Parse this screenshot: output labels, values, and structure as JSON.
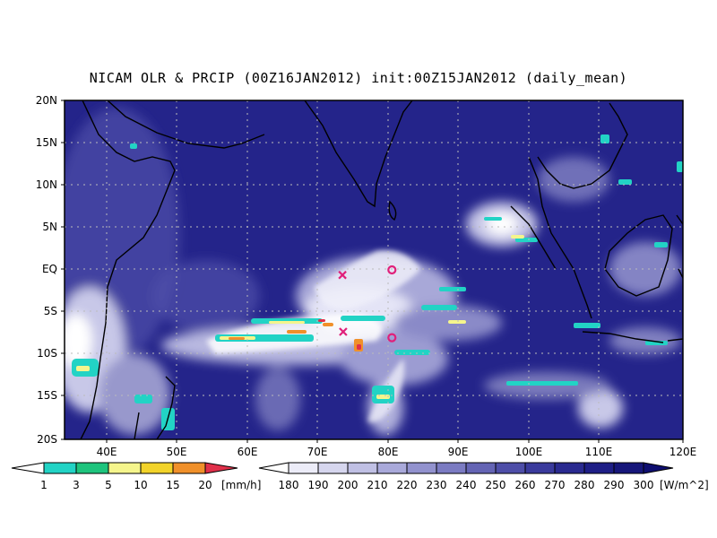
{
  "title": "NICAM OLR & PRCIP (00Z16JAN2012) init:00Z15JAN2012 (daily_mean)",
  "axes": {
    "lat_labels": [
      "20N",
      "15N",
      "10N",
      "5N",
      "EQ",
      "5S",
      "10S",
      "15S",
      "20S"
    ],
    "lon_labels": [
      "40E",
      "50E",
      "60E",
      "70E",
      "80E",
      "90E",
      "100E",
      "110E",
      "120E"
    ]
  },
  "precip_colorbar": {
    "unit": "[mm/h]",
    "ticks": [
      "1",
      "3",
      "5",
      "10",
      "15",
      "20"
    ],
    "colors": [
      "#ffffff",
      "#22d3c5",
      "#1ec47d",
      "#f5f58c",
      "#f2d32a",
      "#f0902a",
      "#e0304a"
    ]
  },
  "olr_colorbar": {
    "unit": "[W/m^2]",
    "ticks": [
      "180",
      "190",
      "200",
      "210",
      "220",
      "230",
      "240",
      "250",
      "260",
      "270",
      "280",
      "290",
      "300"
    ],
    "colors": [
      "#ffffff",
      "#ececf8",
      "#d6d6ee",
      "#c0c0e4",
      "#a9a9da",
      "#9292ce",
      "#7b7bc2",
      "#6464b4",
      "#4e4ea8",
      "#3a3a9c",
      "#2a2a90",
      "#1e1e86",
      "#16167a",
      "#0e0e70"
    ]
  },
  "markers": [
    {
      "type": "x",
      "lon": 73.2,
      "lat": -0.6,
      "color": "#e0207a"
    },
    {
      "type": "x",
      "lon": 73.3,
      "lat": -7.3,
      "color": "#e0207a"
    },
    {
      "type": "o",
      "lon": 80,
      "lat": 0,
      "color": "#e0207a"
    },
    {
      "type": "o",
      "lon": 80,
      "lat": -8,
      "color": "#e0207a"
    }
  ]
}
